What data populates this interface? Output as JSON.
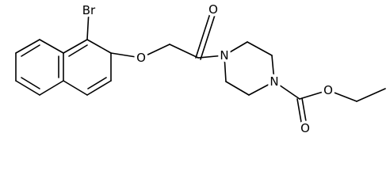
{
  "atoms": [
    {
      "label": "Br"
    },
    {
      "label": "O"
    },
    {
      "label": "O"
    },
    {
      "label": "N"
    },
    {
      "label": "N"
    },
    {
      "label": "O"
    },
    {
      "label": "O"
    }
  ]
}
